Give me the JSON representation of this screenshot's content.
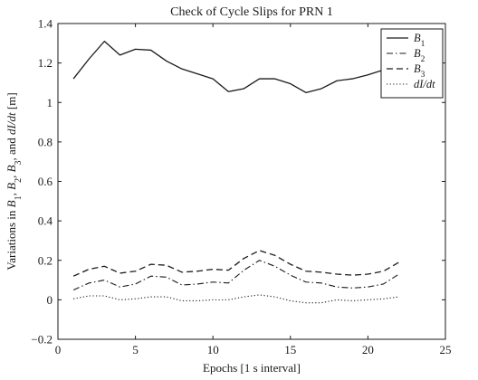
{
  "chart_data": {
    "type": "line",
    "title": "Check of Cycle Slips for PRN  1",
    "xlabel": "Epochs [1 s interval]",
    "ylabel_parts": [
      {
        "text": "Variations in ",
        "style": "normal"
      },
      {
        "text": "B",
        "style": "italic"
      },
      {
        "text": "1",
        "style": "sub"
      },
      {
        "text": ", ",
        "style": "normal"
      },
      {
        "text": "B",
        "style": "italic"
      },
      {
        "text": "2",
        "style": "sub"
      },
      {
        "text": ", ",
        "style": "normal"
      },
      {
        "text": "B",
        "style": "italic"
      },
      {
        "text": "3",
        "style": "sub"
      },
      {
        "text": ", and ",
        "style": "normal"
      },
      {
        "text": "dI/dt",
        "style": "italic"
      },
      {
        "text": "  [m]",
        "style": "normal"
      }
    ],
    "xlim": [
      0,
      25
    ],
    "ylim": [
      -0.2,
      1.4
    ],
    "xticks": [
      0,
      5,
      10,
      15,
      20,
      25
    ],
    "yticks": [
      -0.2,
      0,
      0.2,
      0.4,
      0.6,
      0.8,
      1,
      1.2,
      1.4
    ],
    "xtick_labels": [
      "0",
      "5",
      "10",
      "15",
      "20",
      "25"
    ],
    "ytick_labels": [
      "−0.2",
      "0",
      "0.2",
      "0.4",
      "0.6",
      "0.8",
      "1",
      "1.2",
      "1.4"
    ],
    "grid": false,
    "legend_position": "top-right",
    "x": [
      1,
      2,
      3,
      4,
      5,
      6,
      7,
      8,
      9,
      10,
      11,
      12,
      13,
      14,
      15,
      16,
      17,
      18,
      19,
      20,
      21,
      22
    ],
    "series": [
      {
        "name_base": "B",
        "name_sub": "1",
        "line_style": "solid",
        "values": [
          1.12,
          1.22,
          1.31,
          1.24,
          1.27,
          1.265,
          1.21,
          1.17,
          1.145,
          1.12,
          1.055,
          1.07,
          1.12,
          1.12,
          1.095,
          1.05,
          1.07,
          1.11,
          1.12,
          1.14,
          1.165,
          1.175
        ]
      },
      {
        "name_base": "B",
        "name_sub": "2",
        "line_style": "dashdot",
        "values": [
          0.05,
          0.085,
          0.1,
          0.065,
          0.08,
          0.12,
          0.115,
          0.075,
          0.08,
          0.09,
          0.085,
          0.15,
          0.2,
          0.17,
          0.125,
          0.09,
          0.085,
          0.065,
          0.06,
          0.065,
          0.08,
          0.13
        ]
      },
      {
        "name_base": "B",
        "name_sub": "3",
        "line_style": "dashed",
        "values": [
          0.12,
          0.155,
          0.17,
          0.135,
          0.145,
          0.18,
          0.175,
          0.14,
          0.145,
          0.155,
          0.15,
          0.21,
          0.25,
          0.225,
          0.18,
          0.145,
          0.14,
          0.13,
          0.125,
          0.13,
          0.145,
          0.19
        ]
      },
      {
        "name_base": "dI/dt",
        "name_sub": "",
        "line_style": "dotted",
        "values": [
          0.005,
          0.02,
          0.02,
          0.0,
          0.005,
          0.015,
          0.015,
          -0.005,
          -0.005,
          0.0,
          0.0,
          0.015,
          0.025,
          0.015,
          -0.005,
          -0.015,
          -0.015,
          0.0,
          -0.005,
          0.0,
          0.005,
          0.015
        ]
      }
    ]
  }
}
